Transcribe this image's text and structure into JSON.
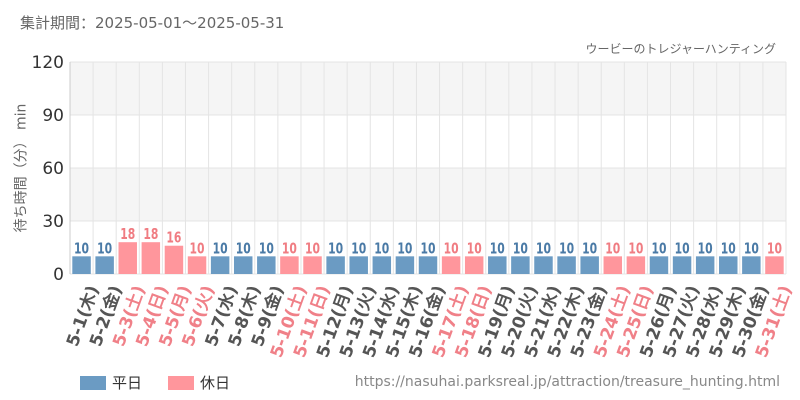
{
  "header": {
    "period": "集計期間：2025-05-01～2025-05-31"
  },
  "chart_data": {
    "type": "bar",
    "title": "ウービーのトレジャーハンティング",
    "ylabel": "待ち時間（分） min",
    "xlabel": "",
    "ylim": [
      0,
      120
    ],
    "yticks": [
      0,
      30,
      60,
      90,
      120
    ],
    "grid": true,
    "legend_position": "bottom-left",
    "categories": [
      "5-1(木)",
      "5-2(金)",
      "5-3(土)",
      "5-4(日)",
      "5-5(月)",
      "5-6(火)",
      "5-7(水)",
      "5-8(木)",
      "5-9(金)",
      "5-10(土)",
      "5-11(日)",
      "5-12(月)",
      "5-13(火)",
      "5-14(水)",
      "5-15(木)",
      "5-16(金)",
      "5-17(土)",
      "5-18(日)",
      "5-19(月)",
      "5-20(火)",
      "5-21(水)",
      "5-22(木)",
      "5-23(金)",
      "5-24(土)",
      "5-25(日)",
      "5-26(月)",
      "5-27(火)",
      "5-28(水)",
      "5-29(木)",
      "5-30(金)",
      "5-31(土)"
    ],
    "values": [
      10,
      10,
      18,
      18,
      16,
      10,
      10,
      10,
      10,
      10,
      10,
      10,
      10,
      10,
      10,
      10,
      10,
      10,
      10,
      10,
      10,
      10,
      10,
      10,
      10,
      10,
      10,
      10,
      10,
      10,
      10
    ],
    "day_type": [
      "平日",
      "平日",
      "休日",
      "休日",
      "休日",
      "休日",
      "平日",
      "平日",
      "平日",
      "休日",
      "休日",
      "平日",
      "平日",
      "平日",
      "平日",
      "平日",
      "休日",
      "休日",
      "平日",
      "平日",
      "平日",
      "平日",
      "平日",
      "休日",
      "休日",
      "平日",
      "平日",
      "平日",
      "平日",
      "平日",
      "休日"
    ],
    "legend": [
      {
        "name": "平日",
        "color": "#6b9bc3"
      },
      {
        "name": "休日",
        "color": "#ff969c"
      }
    ],
    "colors": {
      "weekday_bar": "#6b9bc3",
      "holiday_bar": "#ff969c",
      "weekday_label": "#4a7aa6",
      "holiday_label": "#f07c82",
      "weekday_tick": "#555555",
      "holiday_tick": "#f08088",
      "band_alt": "#f5f5f5",
      "grid": "#e4e4e4"
    }
  },
  "footer": {
    "url": "https://nasuhai.parksreal.jp/attraction/treasure_hunting.html"
  }
}
